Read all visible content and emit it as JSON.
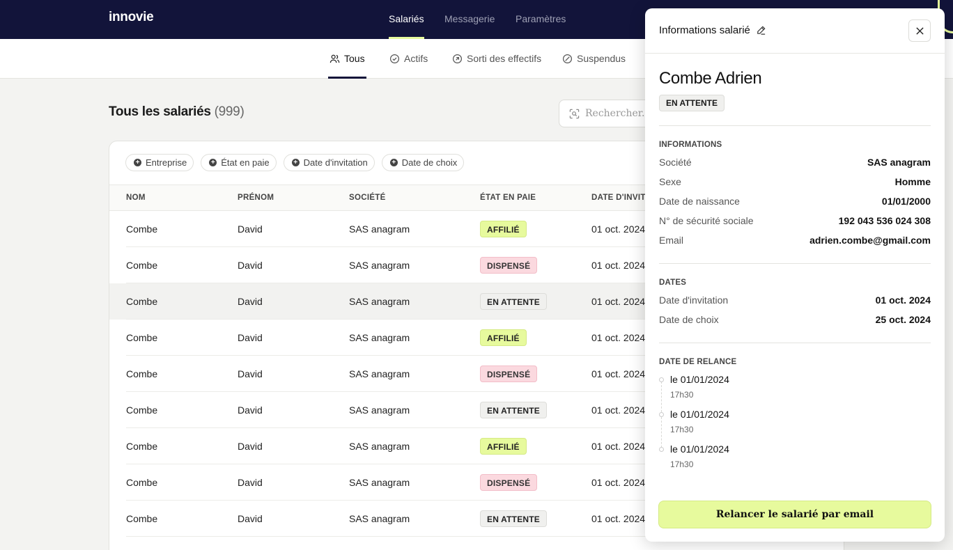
{
  "app": {
    "logo": "innovie"
  },
  "topnav": {
    "items": [
      "Salariés",
      "Messagerie",
      "Paramètres"
    ],
    "active": "Salariés"
  },
  "subtabs": {
    "items": [
      "Tous",
      "Actifs",
      "Sorti des effectifs",
      "Suspendus"
    ],
    "active": "Tous"
  },
  "page": {
    "title": "Tous les salariés",
    "count": "(999)"
  },
  "search": {
    "placeholder": "Rechercher..."
  },
  "filters": [
    "Entreprise",
    "État en paie",
    "Date d'invitation",
    "Date de choix"
  ],
  "table": {
    "columns": [
      "NOM",
      "PRÉNOM",
      "SOCIÉTÉ",
      "ÉTAT EN PAIE",
      "DATE D'INVITA"
    ],
    "rows": [
      {
        "nom": "Combe",
        "prenom": "David",
        "societe": "SAS anagram",
        "etat": "AFFILIÉ",
        "date": "01 oct. 2024"
      },
      {
        "nom": "Combe",
        "prenom": "David",
        "societe": "SAS anagram",
        "etat": "DISPENSÉ",
        "date": "01 oct. 2024"
      },
      {
        "nom": "Combe",
        "prenom": "David",
        "societe": "SAS anagram",
        "etat": "EN ATTENTE",
        "date": "01 oct. 2024"
      },
      {
        "nom": "Combe",
        "prenom": "David",
        "societe": "SAS anagram",
        "etat": "AFFILIÉ",
        "date": "01 oct. 2024"
      },
      {
        "nom": "Combe",
        "prenom": "David",
        "societe": "SAS anagram",
        "etat": "DISPENSÉ",
        "date": "01 oct. 2024"
      },
      {
        "nom": "Combe",
        "prenom": "David",
        "societe": "SAS anagram",
        "etat": "EN ATTENTE",
        "date": "01 oct. 2024"
      },
      {
        "nom": "Combe",
        "prenom": "David",
        "societe": "SAS anagram",
        "etat": "AFFILIÉ",
        "date": "01 oct. 2024"
      },
      {
        "nom": "Combe",
        "prenom": "David",
        "societe": "SAS anagram",
        "etat": "DISPENSÉ",
        "date": "01 oct. 2024"
      },
      {
        "nom": "Combe",
        "prenom": "David",
        "societe": "SAS anagram",
        "etat": "EN ATTENTE",
        "date": "01 oct. 2024"
      }
    ]
  },
  "panel": {
    "title": "Informations salarié",
    "name": "Combe Adrien",
    "status": "EN ATTENTE",
    "info_section": "INFORMATIONS",
    "info": [
      {
        "label": "Société",
        "value": "SAS anagram"
      },
      {
        "label": "Sexe",
        "value": "Homme"
      },
      {
        "label": "Date de naissance",
        "value": "01/01/2000"
      },
      {
        "label": "N° de sécurité sociale",
        "value": "192 043 536 024 308"
      },
      {
        "label": "Email",
        "value": "adrien.combe@gmail.com"
      }
    ],
    "dates_section": "DATES",
    "dates": [
      {
        "label": "Date d'invitation",
        "value": "01 oct. 2024"
      },
      {
        "label": "Date de choix",
        "value": "25 oct. 2024"
      }
    ],
    "relance_section": "DATE DE RELANCE",
    "relances": [
      {
        "date": "le 01/01/2024",
        "time": "17h30"
      },
      {
        "date": "le 01/01/2024",
        "time": "17h30"
      },
      {
        "date": "le 01/01/2024",
        "time": "17h30"
      }
    ],
    "cta": "Relancer le salarié par email"
  },
  "colors": {
    "navy": "#12143a",
    "lime": "#e7fa9d",
    "pink": "#fbd9df",
    "grey": "#f0f0ee"
  }
}
